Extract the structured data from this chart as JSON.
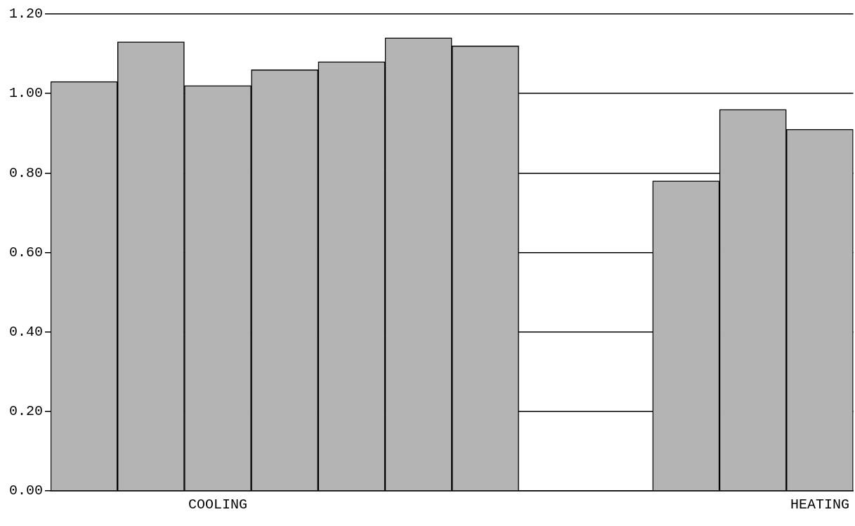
{
  "chart_data": {
    "type": "bar",
    "categories": [
      null,
      null,
      "COOLING",
      null,
      null,
      null,
      null,
      null,
      null,
      null,
      null,
      "HEATING"
    ],
    "values": [
      1.03,
      1.13,
      1.02,
      1.06,
      1.08,
      1.14,
      1.12,
      null,
      null,
      0.78,
      0.96,
      0.91
    ],
    "color": "#b4b4b4",
    "ylim": [
      0,
      1.2
    ],
    "yticks": [
      {
        "value": 0,
        "label": "0.00"
      },
      {
        "value": 0.2,
        "label": "0.20"
      },
      {
        "value": 0.4,
        "label": "0.40"
      },
      {
        "value": 0.6,
        "label": "0.60"
      },
      {
        "value": 0.8,
        "label": "0.80"
      },
      {
        "value": 1,
        "label": "1.00"
      },
      {
        "value": 1.2,
        "label": "1.20"
      }
    ],
    "grid": "y",
    "legend": false
  }
}
